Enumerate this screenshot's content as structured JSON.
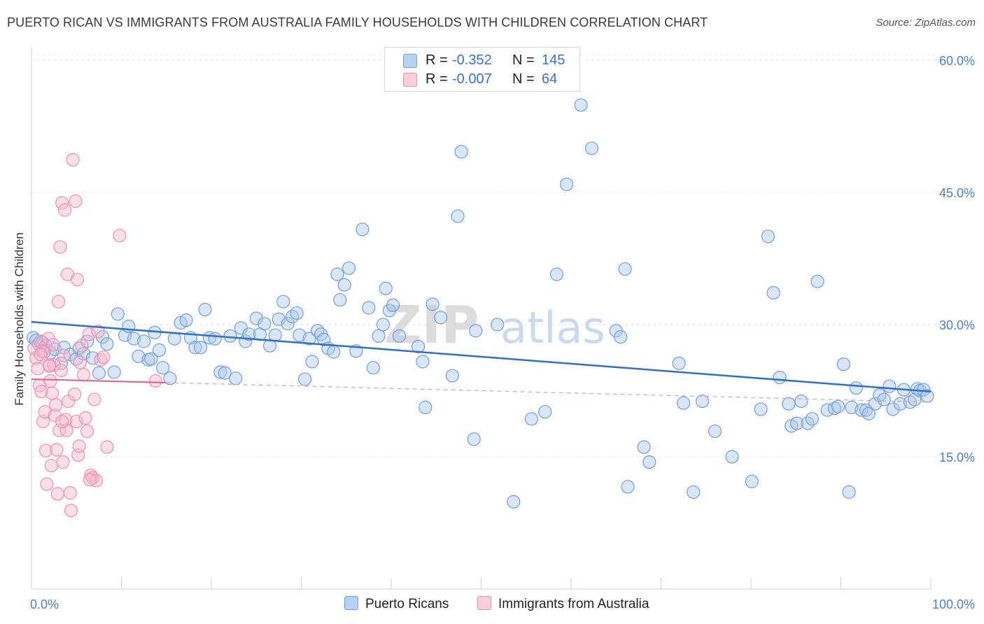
{
  "title": "PUERTO RICAN VS IMMIGRANTS FROM AUSTRALIA FAMILY HOUSEHOLDS WITH CHILDREN CORRELATION CHART",
  "source": "Source: ZipAtlas.com",
  "watermark": {
    "zip": "ZIP",
    "atlas": "atlas"
  },
  "legend": {
    "rows": [
      {
        "r_label": "R =",
        "r_value": "-0.352",
        "n_label": "N =",
        "n_value": "145",
        "color": "#a8c8f0"
      },
      {
        "r_label": "R =",
        "r_value": "-0.007",
        "n_label": "N =",
        "n_value": "64",
        "color": "#f6b8cc"
      }
    ]
  },
  "bottom_legend": {
    "series1": "Puerto Ricans",
    "series2": "Immigrants from Australia"
  },
  "chart_data": {
    "type": "scatter",
    "title": "PUERTO RICAN VS IMMIGRANTS FROM AUSTRALIA FAMILY HOUSEHOLDS WITH CHILDREN CORRELATION CHART",
    "xlabel": "",
    "ylabel": "Family Households with Children",
    "x_tick_labels": [
      "0.0%",
      "100.0%"
    ],
    "y_tick_labels": [
      "15.0%",
      "30.0%",
      "45.0%",
      "60.0%"
    ],
    "y_ticks": [
      15,
      30,
      45,
      60
    ],
    "xlim": [
      0,
      100
    ],
    "ylim": [
      0,
      61.5
    ],
    "grid": true,
    "legend_placement": "top-center",
    "series": [
      {
        "name": "Puerto Ricans",
        "color": "#6f9fe0",
        "fill": "#a8c8f0",
        "trend": {
          "x0": 0,
          "y0": 30.3,
          "x1": 100,
          "y1": 22.4
        },
        "points": [
          [
            0.2,
            28.5
          ],
          [
            0.5,
            28.2
          ],
          [
            0.8,
            27.8
          ],
          [
            1.2,
            28.0
          ],
          [
            1.6,
            27.6
          ],
          [
            2.1,
            26.8
          ],
          [
            2.6,
            27.2
          ],
          [
            3.3,
            25.6
          ],
          [
            3.6,
            27.4
          ],
          [
            4.3,
            26.6
          ],
          [
            5.0,
            26.1
          ],
          [
            5.3,
            27.3
          ],
          [
            5.8,
            26.7
          ],
          [
            6.2,
            28.1
          ],
          [
            6.8,
            26.2
          ],
          [
            7.5,
            24.5
          ],
          [
            7.9,
            28.6
          ],
          [
            8.4,
            27.8
          ],
          [
            9.2,
            24.6
          ],
          [
            9.6,
            31.2
          ],
          [
            10.4,
            28.8
          ],
          [
            10.8,
            29.8
          ],
          [
            11.4,
            28.4
          ],
          [
            11.9,
            26.4
          ],
          [
            12.5,
            28.1
          ],
          [
            13.0,
            26.0
          ],
          [
            13.3,
            26.1
          ],
          [
            13.7,
            29.1
          ],
          [
            14.2,
            27.1
          ],
          [
            14.6,
            25.1
          ],
          [
            15.4,
            23.9
          ],
          [
            15.9,
            28.4
          ],
          [
            16.6,
            30.2
          ],
          [
            17.2,
            30.5
          ],
          [
            17.7,
            28.5
          ],
          [
            18.2,
            27.4
          ],
          [
            18.8,
            27.4
          ],
          [
            19.3,
            31.7
          ],
          [
            19.8,
            28.5
          ],
          [
            20.4,
            28.4
          ],
          [
            21.0,
            24.6
          ],
          [
            21.5,
            24.5
          ],
          [
            22.1,
            28.7
          ],
          [
            22.7,
            23.9
          ],
          [
            23.3,
            29.6
          ],
          [
            23.8,
            28.1
          ],
          [
            24.2,
            28.9
          ],
          [
            25.0,
            30.7
          ],
          [
            25.4,
            28.9
          ],
          [
            25.9,
            30.1
          ],
          [
            26.5,
            27.6
          ],
          [
            27.1,
            28.8
          ],
          [
            27.5,
            30.6
          ],
          [
            28.0,
            32.6
          ],
          [
            28.5,
            30.1
          ],
          [
            29.0,
            30.9
          ],
          [
            29.5,
            31.3
          ],
          [
            29.8,
            28.8
          ],
          [
            30.4,
            23.8
          ],
          [
            30.9,
            28.4
          ],
          [
            31.2,
            25.8
          ],
          [
            31.8,
            29.3
          ],
          [
            32.2,
            28.9
          ],
          [
            32.5,
            28.3
          ],
          [
            33.0,
            27.3
          ],
          [
            33.6,
            26.9
          ],
          [
            34.0,
            35.7
          ],
          [
            34.3,
            32.8
          ],
          [
            34.8,
            34.5
          ],
          [
            35.3,
            36.4
          ],
          [
            36.1,
            27.0
          ],
          [
            36.8,
            40.8
          ],
          [
            37.5,
            31.9
          ],
          [
            38.0,
            25.1
          ],
          [
            38.6,
            28.7
          ],
          [
            39.1,
            30.0
          ],
          [
            39.4,
            34.1
          ],
          [
            39.8,
            31.6
          ],
          [
            40.2,
            32.2
          ],
          [
            40.9,
            28.7
          ],
          [
            43.0,
            27.5
          ],
          [
            43.5,
            25.8
          ],
          [
            43.8,
            20.6
          ],
          [
            44.6,
            32.3
          ],
          [
            45.5,
            30.8
          ],
          [
            46.8,
            24.2
          ],
          [
            47.4,
            42.3
          ],
          [
            47.8,
            49.6
          ],
          [
            49.2,
            17.0
          ],
          [
            49.4,
            29.3
          ],
          [
            51.8,
            30.0
          ],
          [
            53.6,
            9.9
          ],
          [
            55.6,
            19.3
          ],
          [
            57.1,
            20.1
          ],
          [
            58.4,
            35.7
          ],
          [
            59.5,
            45.9
          ],
          [
            61.1,
            54.9
          ],
          [
            62.3,
            50.0
          ],
          [
            65.0,
            29.3
          ],
          [
            65.5,
            28.6
          ],
          [
            66.0,
            36.3
          ],
          [
            66.3,
            11.6
          ],
          [
            68.1,
            16.1
          ],
          [
            68.7,
            14.4
          ],
          [
            72.0,
            25.6
          ],
          [
            72.5,
            21.1
          ],
          [
            73.6,
            11.0
          ],
          [
            74.6,
            21.3
          ],
          [
            76.0,
            17.9
          ],
          [
            77.9,
            15.0
          ],
          [
            80.1,
            12.2
          ],
          [
            81.1,
            20.4
          ],
          [
            81.9,
            40.0
          ],
          [
            82.5,
            33.6
          ],
          [
            83.2,
            24.0
          ],
          [
            84.2,
            21.0
          ],
          [
            84.5,
            18.5
          ],
          [
            85.1,
            18.8
          ],
          [
            85.6,
            21.3
          ],
          [
            86.3,
            18.8
          ],
          [
            86.8,
            19.3
          ],
          [
            87.4,
            34.9
          ],
          [
            88.5,
            20.3
          ],
          [
            89.3,
            20.5
          ],
          [
            89.7,
            20.7
          ],
          [
            90.3,
            25.5
          ],
          [
            90.9,
            11.0
          ],
          [
            91.2,
            20.6
          ],
          [
            91.7,
            22.8
          ],
          [
            92.3,
            20.3
          ],
          [
            92.8,
            20.3
          ],
          [
            93.1,
            19.9
          ],
          [
            93.8,
            21.0
          ],
          [
            94.3,
            22.0
          ],
          [
            94.8,
            21.5
          ],
          [
            95.4,
            23.0
          ],
          [
            95.8,
            20.4
          ],
          [
            96.6,
            21.0
          ],
          [
            97.0,
            22.6
          ],
          [
            97.7,
            21.2
          ],
          [
            98.2,
            21.5
          ],
          [
            98.5,
            22.7
          ],
          [
            98.8,
            22.5
          ],
          [
            99.2,
            22.6
          ],
          [
            99.6,
            21.9
          ]
        ]
      },
      {
        "name": "Immigrants from Australia",
        "color": "#ee8fb0",
        "fill": "#f6b8cc",
        "trend": {
          "x0": 0,
          "y0": 23.8,
          "x1": 100,
          "y1": 21.2,
          "solid_until": 15
        },
        "points": [
          [
            0.3,
            27.3
          ],
          [
            0.5,
            26.2
          ],
          [
            0.7,
            25.0
          ],
          [
            0.9,
            23.1
          ],
          [
            1.0,
            28.1
          ],
          [
            1.1,
            22.4
          ],
          [
            1.2,
            27.0
          ],
          [
            1.3,
            19.0
          ],
          [
            1.4,
            26.9
          ],
          [
            1.5,
            20.1
          ],
          [
            1.6,
            15.7
          ],
          [
            1.7,
            11.9
          ],
          [
            1.9,
            28.4
          ],
          [
            2.0,
            25.4
          ],
          [
            2.1,
            23.6
          ],
          [
            2.2,
            14.0
          ],
          [
            2.3,
            22.2
          ],
          [
            2.4,
            27.7
          ],
          [
            2.5,
            25.4
          ],
          [
            2.6,
            19.7
          ],
          [
            2.7,
            20.9
          ],
          [
            2.8,
            15.8
          ],
          [
            2.9,
            10.8
          ],
          [
            3.0,
            32.6
          ],
          [
            3.1,
            18.0
          ],
          [
            3.2,
            38.8
          ],
          [
            3.3,
            24.8
          ],
          [
            3.4,
            43.8
          ],
          [
            3.5,
            14.4
          ],
          [
            3.6,
            26.5
          ],
          [
            3.7,
            43.0
          ],
          [
            3.8,
            19.2
          ],
          [
            3.9,
            18.0
          ],
          [
            4.0,
            35.7
          ],
          [
            4.1,
            21.3
          ],
          [
            4.3,
            10.9
          ],
          [
            4.4,
            8.9
          ],
          [
            4.6,
            48.7
          ],
          [
            4.8,
            22.1
          ],
          [
            4.9,
            44.0
          ],
          [
            5.0,
            19.0
          ],
          [
            5.1,
            35.1
          ],
          [
            5.2,
            15.2
          ],
          [
            5.3,
            16.2
          ],
          [
            5.4,
            25.7
          ],
          [
            5.6,
            27.6
          ],
          [
            5.8,
            24.3
          ],
          [
            6.0,
            19.4
          ],
          [
            6.2,
            17.9
          ],
          [
            6.4,
            28.9
          ],
          [
            6.6,
            12.9
          ],
          [
            6.8,
            12.6
          ],
          [
            7.0,
            21.5
          ],
          [
            7.2,
            12.3
          ],
          [
            7.4,
            29.2
          ],
          [
            7.7,
            26.0
          ],
          [
            8.0,
            26.3
          ],
          [
            8.4,
            16.1
          ],
          [
            9.8,
            40.1
          ],
          [
            13.8,
            23.6
          ],
          [
            1.0,
            26.6
          ],
          [
            2.0,
            25.3
          ],
          [
            3.4,
            19.0
          ],
          [
            6.5,
            12.4
          ]
        ]
      }
    ]
  }
}
